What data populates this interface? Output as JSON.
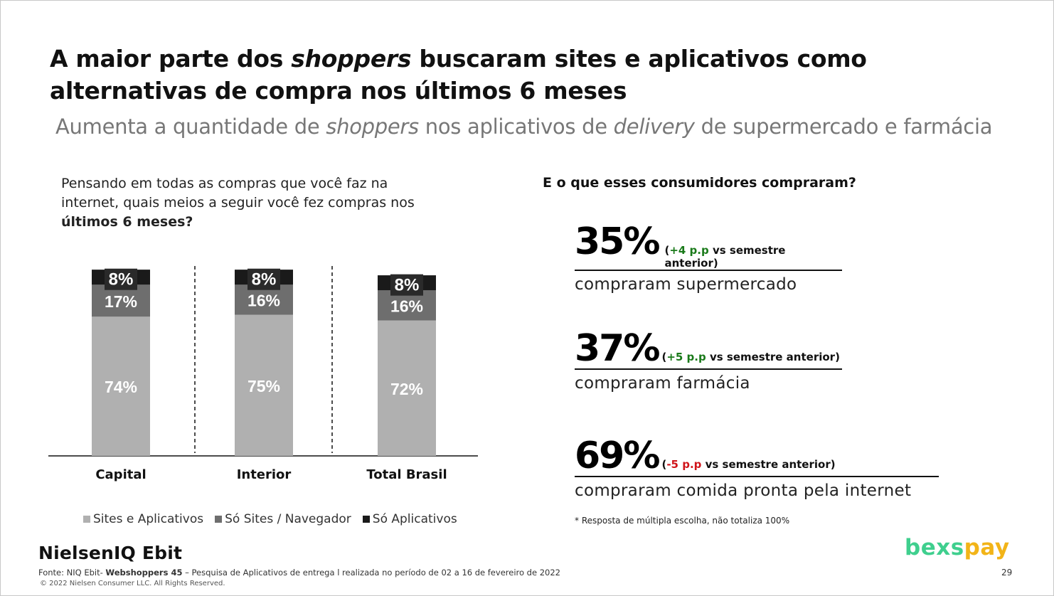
{
  "title": {
    "part1": "A maior parte dos ",
    "em": "shoppers",
    "part2": " buscaram sites e aplicativos como alternativas de compra nos últimos 6 meses"
  },
  "subtitle": {
    "part1": "Aumenta a quantidade de ",
    "em1": "shoppers",
    "part2": " nos aplicativos de ",
    "em2": "delivery",
    "part3": " de supermercado e farmácia"
  },
  "question": {
    "text": "Pensando em todas as compras que você faz na internet, quais meios a seguir você fez compras nos ",
    "bold": "últimos 6 meses?"
  },
  "chart_data": {
    "type": "bar",
    "stacked": true,
    "categories": [
      "Capital",
      "Interior",
      "Total Brasil"
    ],
    "series": [
      {
        "name": "Sites e Aplicativos",
        "values": [
          74,
          75,
          72
        ],
        "color": "#b0b0b0"
      },
      {
        "name": "Só Sites / Navegador",
        "values": [
          17,
          16,
          16
        ],
        "color": "#6e6e6e"
      },
      {
        "name": "Só Aplicativos",
        "values": [
          8,
          8,
          8
        ],
        "color": "#1a1a1a"
      }
    ],
    "value_labels": [
      [
        "74%",
        "75%",
        "72%"
      ],
      [
        "17%",
        "16%",
        "16%"
      ],
      [
        "8%",
        "8%",
        "8%"
      ]
    ],
    "legend_position": "bottom",
    "grid": false
  },
  "right": {
    "question": "E o que esses consumidores compraram?",
    "stats": [
      {
        "value": "35%",
        "delta_open": "(",
        "delta_value": "+4 p.p",
        "delta_rest": " vs semestre anterior)",
        "direction": "positive",
        "desc": "compraram supermercado"
      },
      {
        "value": "37%",
        "delta_open": "(",
        "delta_value": "+5 p.p",
        "delta_rest": " vs semestre anterior)",
        "direction": "positive",
        "desc": "compraram farmácia"
      },
      {
        "value": "69%",
        "delta_open": "(",
        "delta_value": "-5 p.p",
        "delta_rest": " vs semestre anterior)",
        "direction": "negative",
        "desc": "compraram comida pronta pela internet"
      }
    ],
    "note": "* Resposta de múltipla escolha, não totaliza 100%"
  },
  "footer": {
    "logo": "NielsenIQ Ebit",
    "source_prefix": "Fonte: NIQ Ebit- ",
    "source_bold": "Webshoppers 45",
    "source_rest": " – Pesquisa de Aplicativos de entrega l realizada no período de 02 a 16 de fevereiro de 2022",
    "copyright": "© 2022 Nielsen Consumer LLC. All Rights Reserved.",
    "brand_part1": "bexs",
    "brand_part2": "pay",
    "page_number": "29"
  }
}
